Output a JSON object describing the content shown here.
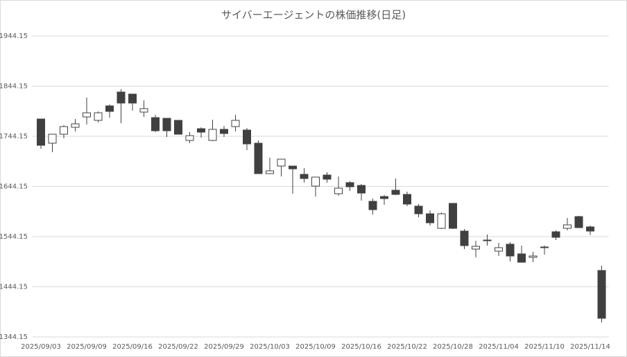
{
  "chart_data": {
    "type": "candlestick",
    "title": "サイバーエージェントの株価推移(日足)",
    "categories": [
      "2025/09/03",
      null,
      null,
      null,
      "2025/09/09",
      null,
      null,
      null,
      "2025/09/16",
      null,
      null,
      null,
      "2025/09/22",
      null,
      null,
      null,
      "2025/09/29",
      null,
      null,
      null,
      "2025/10/03",
      null,
      null,
      null,
      "2025/10/09",
      null,
      null,
      null,
      "2025/10/16",
      null,
      null,
      null,
      "2025/10/22",
      null,
      null,
      null,
      "2025/10/28",
      null,
      null,
      null,
      "2025/11/04",
      null,
      null,
      null,
      "2025/11/10",
      null,
      null,
      null,
      "2025/11/14",
      null
    ],
    "open": [
      1778.6,
      1730.4,
      1748.3,
      1762.1,
      1782.8,
      1775.9,
      1804.8,
      1832.4,
      1828.3,
      1792.4,
      1781.4,
      1780.0,
      1775.9,
      1735.9,
      1759.3,
      1735.9,
      1758.0,
      1763.5,
      1756.6,
      1730.4,
      1669.7,
      1684.8,
      1684.8,
      1668.3,
      1644.8,
      1666.9,
      1629.7,
      1651.8,
      1646.2,
      1614.5,
      1624.1,
      1636.6,
      1628.3,
      1604.9,
      1589.7,
      1560.7,
      1610.4,
      1555.2,
      1519.3,
      1537.3,
      1515.2,
      1529.0,
      1509.7,
      1502.8,
      1522.1,
      1553.8,
      1560.7,
      1584.1,
      1563.5,
      1476.6
    ],
    "high": [
      1778.6,
      1748.3,
      1766.2,
      1778.6,
      1821.4,
      1793.8,
      1807.6,
      1837.9,
      1828.3,
      1815.9,
      1786.9,
      1780.0,
      1775.9,
      1752.4,
      1762.1,
      1777.2,
      1764.9,
      1786.9,
      1760.7,
      1735.9,
      1701.4,
      1698.6,
      1684.8,
      1680.7,
      1662.8,
      1672.4,
      1664.2,
      1654.5,
      1649.0,
      1620.0,
      1626.9,
      1660.0,
      1633.8,
      1609.0,
      1596.6,
      1592.4,
      1610.4,
      1559.3,
      1535.9,
      1548.3,
      1531.7,
      1533.1,
      1526.2,
      1513.8,
      1526.2,
      1556.6,
      1581.4,
      1585.6,
      1566.2,
      1486.2
    ],
    "low": [
      1719.3,
      1712.4,
      1740.0,
      1753.8,
      1767.6,
      1771.7,
      1781.4,
      1770.3,
      1795.2,
      1782.8,
      1752.4,
      1742.8,
      1748.3,
      1730.4,
      1741.4,
      1734.5,
      1742.8,
      1753.8,
      1716.6,
      1669.7,
      1669.7,
      1664.2,
      1629.7,
      1651.8,
      1624.1,
      1651.8,
      1625.5,
      1635.2,
      1615.9,
      1588.3,
      1607.6,
      1626.9,
      1604.9,
      1582.8,
      1566.2,
      1559.3,
      1559.3,
      1519.3,
      1502.8,
      1526.2,
      1505.5,
      1494.5,
      1493.1,
      1493.1,
      1508.3,
      1537.3,
      1556.6,
      1562.1,
      1547.0,
      1373.1
    ],
    "close": [
      1726.2,
      1748.3,
      1763.5,
      1769.0,
      1791.0,
      1791.0,
      1793.8,
      1810.4,
      1810.4,
      1799.3,
      1755.2,
      1755.2,
      1748.3,
      1745.5,
      1752.4,
      1758.0,
      1749.7,
      1775.9,
      1729.0,
      1669.7,
      1675.2,
      1698.6,
      1679.3,
      1660.0,
      1662.8,
      1658.6,
      1640.7,
      1643.5,
      1631.0,
      1597.9,
      1620.0,
      1628.3,
      1609.0,
      1589.7,
      1571.7,
      1589.7,
      1560.7,
      1526.2,
      1524.8,
      1535.9,
      1522.1,
      1505.5,
      1493.1,
      1505.5,
      1523.5,
      1542.8,
      1567.6,
      1562.1,
      1555.2,
      1381.4
    ],
    "up_color": "#ffffff",
    "down_color": "#404040",
    "line_color": "#404040",
    "ylim": [
      1344.15,
      1944.15
    ],
    "yticks": [
      1344.15,
      1444.15,
      1544.15,
      1644.15,
      1744.15,
      1844.15,
      1944.15
    ],
    "grid": true
  }
}
